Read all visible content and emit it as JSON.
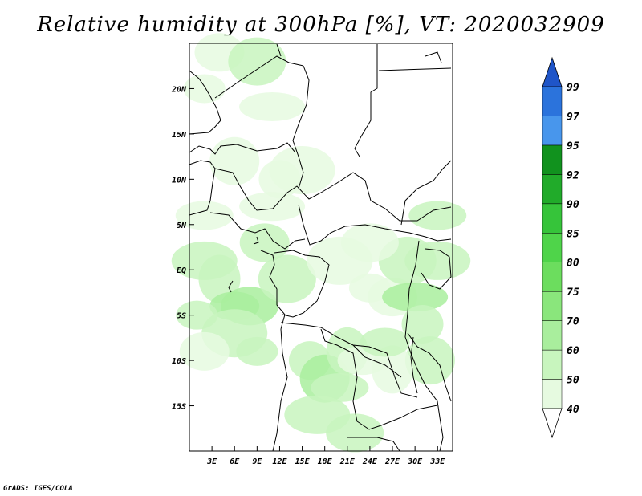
{
  "title": "Relative humidity at 300hPa [%], VT: 2020032909",
  "credit": "GrADS: IGES/COLA",
  "map": {
    "lon_range": [
      0,
      35
    ],
    "lat_range": [
      -20,
      25
    ],
    "lat_ticks": [
      {
        "value": 20,
        "label": "20N"
      },
      {
        "value": 15,
        "label": "15N"
      },
      {
        "value": 10,
        "label": "10N"
      },
      {
        "value": 5,
        "label": "5N"
      },
      {
        "value": 0,
        "label": "EQ"
      },
      {
        "value": -5,
        "label": "5S"
      },
      {
        "value": -10,
        "label": "10S"
      },
      {
        "value": -15,
        "label": "15S"
      }
    ],
    "lon_ticks": [
      {
        "value": 3,
        "label": "3E"
      },
      {
        "value": 6,
        "label": "6E"
      },
      {
        "value": 9,
        "label": "9E"
      },
      {
        "value": 12,
        "label": "12E"
      },
      {
        "value": 15,
        "label": "15E"
      },
      {
        "value": 18,
        "label": "18E"
      },
      {
        "value": 21,
        "label": "21E"
      },
      {
        "value": 24,
        "label": "24E"
      },
      {
        "value": 27,
        "label": "27E"
      },
      {
        "value": 30,
        "label": "30E"
      },
      {
        "value": 33,
        "label": "33E"
      }
    ]
  },
  "colorbar": {
    "levels": [
      "40",
      "50",
      "60",
      "70",
      "75",
      "80",
      "85",
      "90",
      "92",
      "95",
      "97",
      "99"
    ],
    "colors": [
      "#ffffff",
      "#e6fae0",
      "#c8f5be",
      "#a9ee9d",
      "#8ae67c",
      "#6cdd5e",
      "#4fd44a",
      "#36c43a",
      "#21ab2a",
      "#11921e",
      "#4896ec",
      "#2b73dc",
      "#1f55c8"
    ]
  },
  "humidity_field": [
    {
      "lon": 2,
      "lat": 20,
      "level": 1
    },
    {
      "lon": 4,
      "lat": 24,
      "level": 1
    },
    {
      "lon": 9,
      "lat": 23,
      "level": 2
    },
    {
      "lon": 11,
      "lat": 18,
      "level": 1
    },
    {
      "lon": 12,
      "lat": 10,
      "level": 1
    },
    {
      "lon": 6,
      "lat": 12,
      "level": 1
    },
    {
      "lon": 2,
      "lat": 6,
      "level": 1
    },
    {
      "lon": 2,
      "lat": 1,
      "level": 2
    },
    {
      "lon": 4,
      "lat": -1,
      "level": 2
    },
    {
      "lon": 6,
      "lat": -4,
      "level": 3
    },
    {
      "lon": 8,
      "lat": -4,
      "level": 3
    },
    {
      "lon": 6,
      "lat": -7,
      "level": 2
    },
    {
      "lon": 9,
      "lat": -9,
      "level": 2
    },
    {
      "lon": 10,
      "lat": 3,
      "level": 2
    },
    {
      "lon": 13,
      "lat": -1,
      "level": 2
    },
    {
      "lon": 11,
      "lat": 7,
      "level": 1
    },
    {
      "lon": 16,
      "lat": -10,
      "level": 2
    },
    {
      "lon": 18,
      "lat": -12,
      "level": 3
    },
    {
      "lon": 20,
      "lat": -13,
      "level": 2
    },
    {
      "lon": 17,
      "lat": -16,
      "level": 2
    },
    {
      "lon": 21,
      "lat": -9,
      "level": 2
    },
    {
      "lon": 23,
      "lat": -10,
      "level": 1
    },
    {
      "lon": 22,
      "lat": -18,
      "level": 2
    },
    {
      "lon": 20,
      "lat": 1,
      "level": 1
    },
    {
      "lon": 24,
      "lat": -2,
      "level": 1
    },
    {
      "lon": 27,
      "lat": -3,
      "level": 1
    },
    {
      "lon": 29,
      "lat": 1,
      "level": 2
    },
    {
      "lon": 30,
      "lat": -3,
      "level": 3
    },
    {
      "lon": 31,
      "lat": -6,
      "level": 2
    },
    {
      "lon": 32,
      "lat": -10,
      "level": 2
    },
    {
      "lon": 33,
      "lat": 6,
      "level": 2
    },
    {
      "lon": 33,
      "lat": 1,
      "level": 2
    },
    {
      "lon": 27,
      "lat": -11,
      "level": 1
    },
    {
      "lon": 26,
      "lat": -8,
      "level": 2
    },
    {
      "lon": 24,
      "lat": 3,
      "level": 1
    },
    {
      "lon": 15,
      "lat": 11,
      "level": 1
    },
    {
      "lon": 1,
      "lat": -5,
      "level": 2
    },
    {
      "lon": 2,
      "lat": -9,
      "level": 1
    }
  ]
}
